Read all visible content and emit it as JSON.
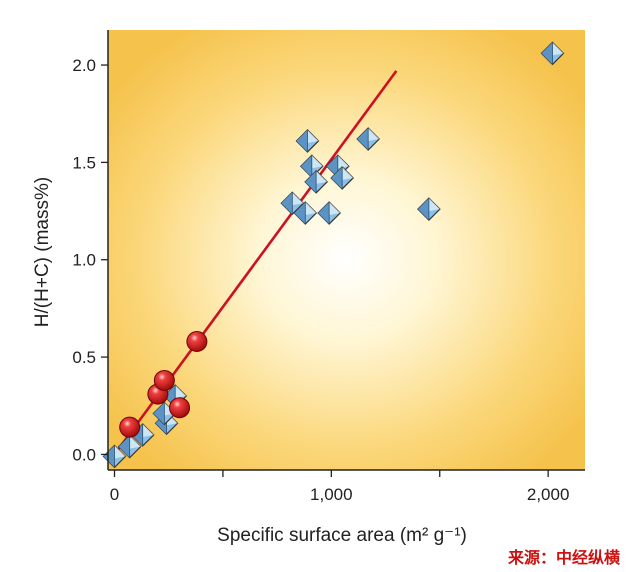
{
  "chart_data": {
    "type": "scatter",
    "title": "",
    "xlabel": "Specific surface area (m² g⁻¹)",
    "ylabel": "H/(H+C) (mass%)",
    "xlim": [
      -30,
      2170
    ],
    "ylim": [
      -0.08,
      2.18
    ],
    "xticks": [
      0,
      1000,
      2000
    ],
    "xtick_labels": [
      "0",
      "1,000",
      "2,000"
    ],
    "yticks": [
      0.0,
      0.5,
      1.0,
      1.5,
      2.0
    ],
    "ytick_labels": [
      "0.0",
      "0.5",
      "1.0",
      "1.5",
      "2.0"
    ],
    "grid": false,
    "background": "radial gradient, white center to golden yellow edges",
    "series": [
      {
        "marker": "diamond",
        "color": "#6fa8d6",
        "x": [
          2020,
          1170,
          890,
          910,
          1030,
          930,
          1050,
          820,
          880,
          990,
          1450,
          0,
          70,
          130,
          240,
          280,
          230
        ],
        "y": [
          2.06,
          1.62,
          1.61,
          1.48,
          1.48,
          1.4,
          1.42,
          1.29,
          1.24,
          1.24,
          1.26,
          -0.01,
          0.04,
          0.1,
          0.16,
          0.3,
          0.21
        ]
      },
      {
        "marker": "sphere",
        "color": "#d01818",
        "x": [
          70,
          200,
          230,
          300,
          380
        ],
        "y": [
          0.14,
          0.31,
          0.38,
          0.24,
          0.58
        ]
      }
    ],
    "fit_line": {
      "x": [
        0,
        1300
      ],
      "y": [
        0.0,
        1.97
      ],
      "color": "#cc1122"
    }
  },
  "source": "来源：中经纵横"
}
